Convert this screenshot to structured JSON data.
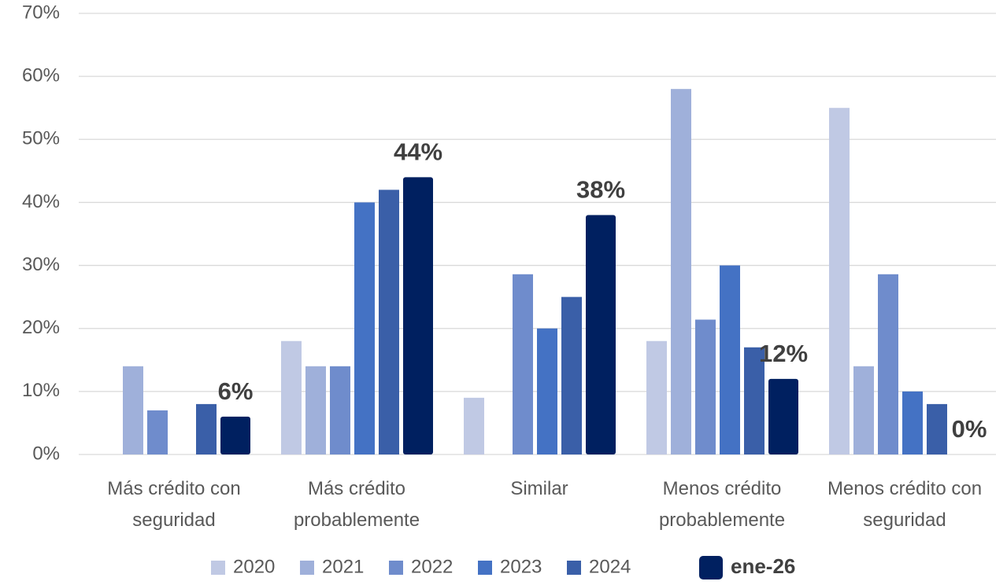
{
  "chart_data": {
    "type": "bar",
    "categories": [
      "Más crédito con seguridad",
      "Más crédito probablemente",
      "Similar",
      "Menos crédito probablemente",
      "Menos crédito con seguridad"
    ],
    "series": [
      {
        "name": "2020",
        "color": "#c0c9e4",
        "values": [
          0,
          18,
          9,
          18,
          55
        ]
      },
      {
        "name": "2021",
        "color": "#9fb0da",
        "values": [
          14,
          14,
          0,
          58,
          14
        ]
      },
      {
        "name": "2022",
        "color": "#6f8ccc",
        "values": [
          7,
          14,
          28.6,
          21.4,
          28.6
        ]
      },
      {
        "name": "2023",
        "color": "#4472c4",
        "values": [
          0,
          40,
          20,
          30,
          10
        ]
      },
      {
        "name": "2024",
        "color": "#3a5fa8",
        "values": [
          8,
          42,
          25,
          17,
          8
        ]
      },
      {
        "name": "ene-26",
        "color": "#002060",
        "values": [
          6,
          44,
          38,
          12,
          0
        ],
        "value_labels": [
          "6%",
          "44%",
          "38%",
          "12%",
          "0%"
        ]
      }
    ],
    "ylim": [
      0,
      70
    ],
    "yticks": [
      {
        "value": 0,
        "label": "0%"
      },
      {
        "value": 10,
        "label": "10%"
      },
      {
        "value": 20,
        "label": "20%"
      },
      {
        "value": 30,
        "label": "30%"
      },
      {
        "value": 40,
        "label": "40%"
      },
      {
        "value": 50,
        "label": "50%"
      },
      {
        "value": 60,
        "label": "60%"
      },
      {
        "value": 70,
        "label": "70%"
      }
    ],
    "grid": true,
    "legend": "bottom"
  }
}
